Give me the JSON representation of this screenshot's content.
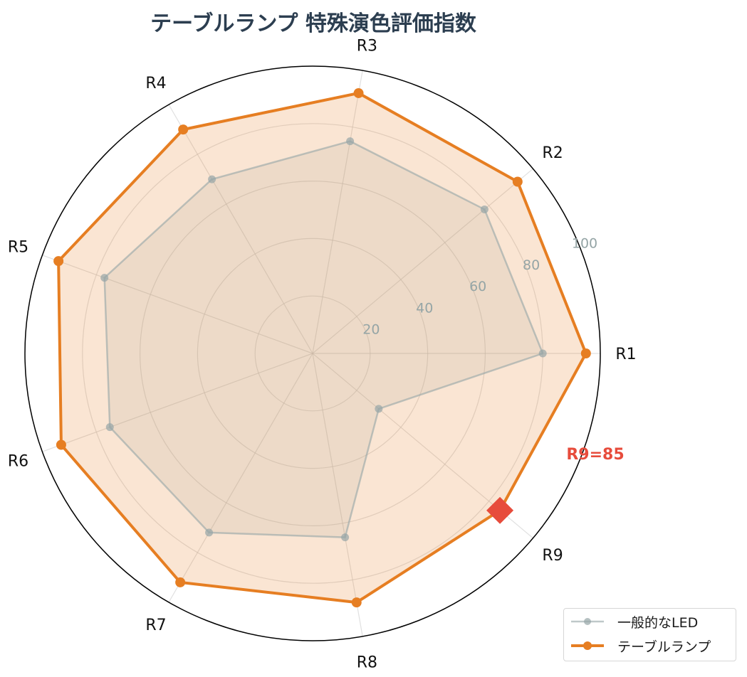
{
  "title": "テーブルランプ 特殊演色評価指数",
  "chart_data": {
    "type": "radar",
    "title": "テーブルランプ 特殊演色評価指数",
    "categories": [
      "R1",
      "R2",
      "R3",
      "R4",
      "R5",
      "R6",
      "R7",
      "R8",
      "R9"
    ],
    "series": [
      {
        "name": "一般的なLED",
        "color": "#95a5a6",
        "values": [
          80,
          78,
          75,
          70,
          77,
          75,
          72,
          65,
          30
        ]
      },
      {
        "name": "テーブルランプ",
        "color": "#e67e22",
        "values": [
          95,
          93,
          92,
          90,
          94,
          93,
          92,
          88,
          85
        ]
      }
    ],
    "radial_ticks": [
      20,
      40,
      60,
      80,
      100
    ],
    "rlim": [
      0,
      100
    ],
    "annotation": {
      "text": "R9=85",
      "color": "#e74c3c",
      "target": "R9",
      "value": 85
    },
    "legend_position": "lower right",
    "grid": true
  },
  "legend": {
    "items": [
      {
        "label": "一般的なLED",
        "color": "#95a5a6"
      },
      {
        "label": "テーブルランプ",
        "color": "#e67e22"
      }
    ]
  },
  "annotation_text": "R9=85"
}
